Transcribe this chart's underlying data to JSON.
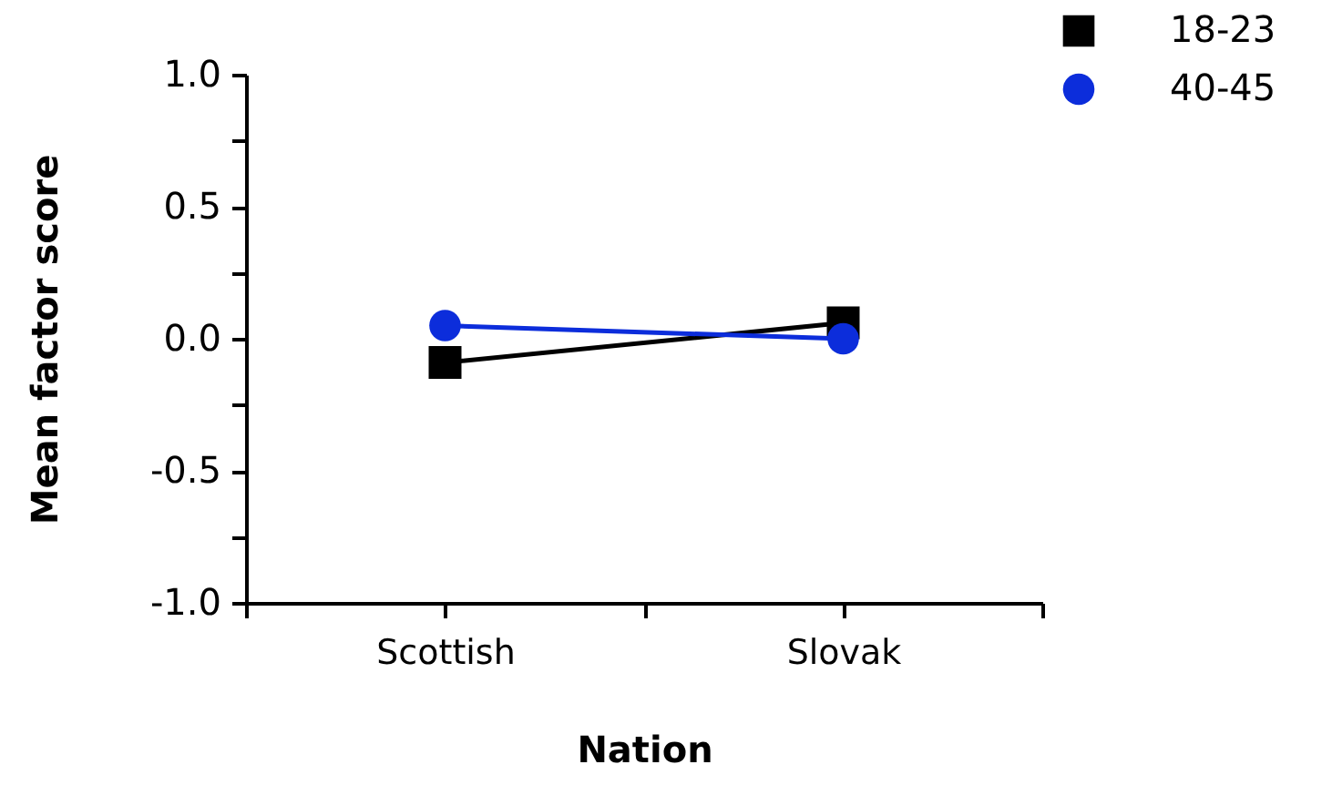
{
  "chart_data": {
    "type": "line",
    "xlabel": "Nation",
    "ylabel": "Mean factor score",
    "categories": [
      "Scottish",
      "Slovak"
    ],
    "series": [
      {
        "name": "18-23",
        "color": "#000000",
        "marker": "square",
        "values": [
          -0.09,
          0.06
        ]
      },
      {
        "name": "40-45",
        "color": "#0c2ddb",
        "marker": "circle",
        "values": [
          0.05,
          0.0
        ]
      }
    ],
    "ylim": [
      -1,
      1
    ],
    "yticks": [
      {
        "value": -1,
        "label": "-1.0"
      },
      {
        "value": -0.75,
        "label": null
      },
      {
        "value": -0.5,
        "label": "-0.5"
      },
      {
        "value": -0.25,
        "label": null
      },
      {
        "value": 0,
        "label": "0.0"
      },
      {
        "value": 0.25,
        "label": null
      },
      {
        "value": 0.5,
        "label": "0.5"
      },
      {
        "value": 0.75,
        "label": null
      },
      {
        "value": 1,
        "label": "1.0"
      }
    ],
    "grid": false,
    "legend": "top right",
    "line_style": "solid"
  }
}
